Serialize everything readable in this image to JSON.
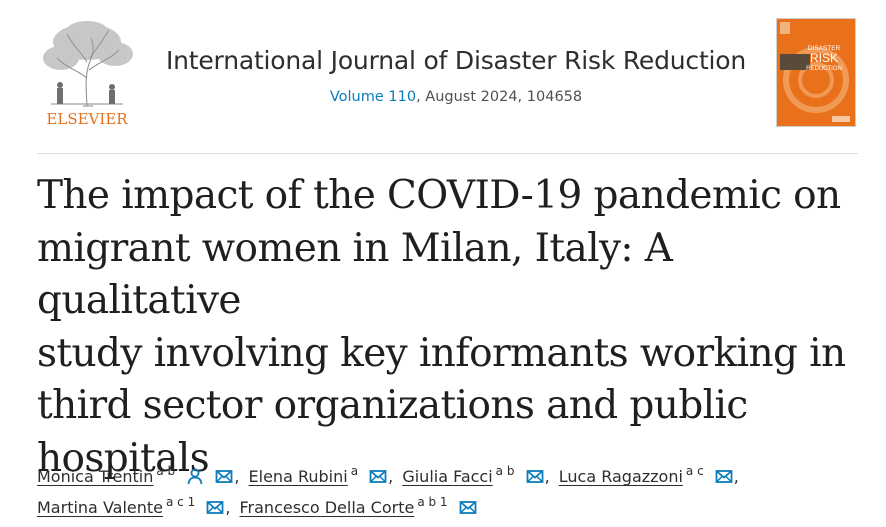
{
  "header": {
    "publisher": "ELSEVIER",
    "journal_title": "International Journal of Disaster Risk Reduction",
    "volume_link": "Volume 110",
    "issue_details": ", August 2024, 104658",
    "cover": {
      "line1": "DISASTER",
      "line2": "RISK",
      "line3": "REDUCTION"
    }
  },
  "article": {
    "title_lines": [
      "The impact of the COVID-19 pandemic on",
      "migrant women in Milan, Italy: A qualitative",
      "study involving key informants working in",
      "third sector organizations and public",
      "hospitals"
    ]
  },
  "authors": [
    {
      "name": "Monica Trentin",
      "sup": "a b",
      "person_icon": true,
      "sep": ","
    },
    {
      "name": "Elena Rubini",
      "sup": "a",
      "person_icon": false,
      "sep": ","
    },
    {
      "name": "Giulia Facci",
      "sup": "a b",
      "person_icon": false,
      "sep": ","
    },
    {
      "name": "Luca Ragazzoni",
      "sup": "a c",
      "person_icon": false,
      "sep": ","
    },
    {
      "name": "Martina Valente",
      "sup": "a c 1",
      "person_icon": false,
      "sep": ","
    },
    {
      "name": "Francesco Della Corte",
      "sup": "a b 1",
      "person_icon": false,
      "sep": ""
    }
  ],
  "colors": {
    "link": "#0c7dbb",
    "publisher": "#e9711c",
    "cover": "#e9711c"
  },
  "icons": {
    "person": "person-icon",
    "email": "email-icon"
  }
}
